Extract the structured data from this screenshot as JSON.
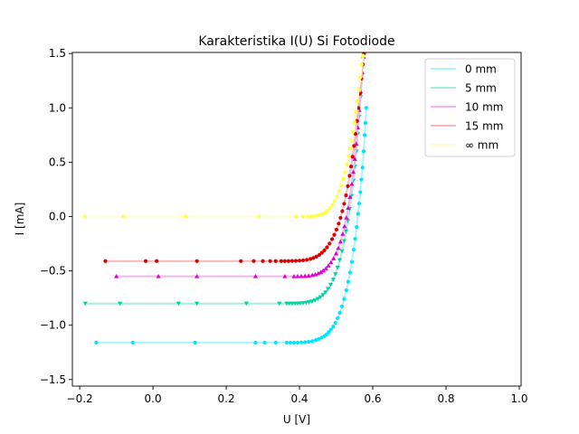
{
  "chart_data": {
    "type": "scatter",
    "title": "Karakteristika I(U) Si Fotodiode",
    "xlabel": "U [V]",
    "ylabel": "I [mA]",
    "xlim": [
      -0.22,
      1.005
    ],
    "ylim": [
      -1.56,
      1.51
    ],
    "xticks": [
      -0.2,
      0.0,
      0.2,
      0.4,
      0.6,
      0.8,
      1.0
    ],
    "yticks": [
      -1.5,
      -1.0,
      -0.5,
      0.0,
      0.5,
      1.0,
      1.5
    ],
    "xtick_labels": [
      "−0.2",
      "0.0",
      "0.2",
      "0.4",
      "0.6",
      "0.8",
      "1.0"
    ],
    "ytick_labels": [
      "−1.5",
      "−1.0",
      "−0.5",
      "0.0",
      "0.5",
      "1.0",
      "1.5"
    ],
    "grid": false,
    "legend_position": "top-right",
    "series": [
      {
        "name": "0 mm",
        "color": "#00e5ff",
        "line_color": "#a6f6ff",
        "marker": "circle",
        "points": [
          [
            -0.155,
            -1.16
          ],
          [
            -0.055,
            -1.16
          ],
          [
            0.115,
            -1.16
          ],
          [
            0.28,
            -1.16
          ],
          [
            0.305,
            -1.16
          ],
          [
            0.335,
            -1.16
          ],
          [
            0.365,
            -1.16
          ],
          [
            0.375,
            -1.16
          ],
          [
            0.385,
            -1.16
          ],
          [
            0.395,
            -1.16
          ],
          [
            0.405,
            -1.158
          ],
          [
            0.415,
            -1.156
          ],
          [
            0.425,
            -1.152
          ],
          [
            0.435,
            -1.146
          ],
          [
            0.445,
            -1.137
          ],
          [
            0.452,
            -1.128
          ],
          [
            0.46,
            -1.115
          ],
          [
            0.468,
            -1.1
          ],
          [
            0.474,
            -1.085
          ],
          [
            0.48,
            -1.063
          ],
          [
            0.486,
            -1.04
          ],
          [
            0.492,
            -1.012
          ],
          [
            0.498,
            -0.977
          ],
          [
            0.504,
            -0.935
          ],
          [
            0.51,
            -0.885
          ],
          [
            0.516,
            -0.827
          ],
          [
            0.522,
            -0.758
          ],
          [
            0.528,
            -0.678
          ],
          [
            0.533,
            -0.6
          ],
          [
            0.538,
            -0.515
          ],
          [
            0.543,
            -0.417
          ],
          [
            0.548,
            -0.305
          ],
          [
            0.552,
            -0.205
          ],
          [
            0.556,
            -0.097
          ],
          [
            0.56,
            0.025
          ],
          [
            0.563,
            0.12
          ],
          [
            0.566,
            0.224
          ],
          [
            0.569,
            0.34
          ],
          [
            0.572,
            0.45
          ],
          [
            0.575,
            0.6
          ],
          [
            0.578,
            0.75
          ],
          [
            0.58,
            0.86
          ],
          [
            0.582,
            1.0
          ]
        ]
      },
      {
        "name": "5 mm",
        "color": "#00d4a0",
        "line_color": "#a6f0d6",
        "marker": "triangle-down",
        "points": [
          [
            -0.185,
            -0.8
          ],
          [
            -0.09,
            -0.8
          ],
          [
            0.07,
            -0.8
          ],
          [
            0.12,
            -0.8
          ],
          [
            0.255,
            -0.8
          ],
          [
            0.345,
            -0.8
          ],
          [
            0.365,
            -0.8
          ],
          [
            0.372,
            -0.8
          ],
          [
            0.38,
            -0.8
          ],
          [
            0.388,
            -0.8
          ],
          [
            0.395,
            -0.799
          ],
          [
            0.402,
            -0.798
          ],
          [
            0.41,
            -0.796
          ],
          [
            0.418,
            -0.793
          ],
          [
            0.426,
            -0.788
          ],
          [
            0.434,
            -0.781
          ],
          [
            0.442,
            -0.771
          ],
          [
            0.45,
            -0.757
          ],
          [
            0.457,
            -0.742
          ],
          [
            0.464,
            -0.722
          ],
          [
            0.471,
            -0.697
          ],
          [
            0.478,
            -0.665
          ],
          [
            0.485,
            -0.627
          ],
          [
            0.492,
            -0.58
          ],
          [
            0.498,
            -0.53
          ],
          [
            0.504,
            -0.47
          ],
          [
            0.51,
            -0.4
          ],
          [
            0.516,
            -0.318
          ],
          [
            0.522,
            -0.225
          ],
          [
            0.527,
            -0.135
          ],
          [
            0.532,
            -0.04
          ],
          [
            0.537,
            0.07
          ],
          [
            0.542,
            0.19
          ],
          [
            0.547,
            0.33
          ],
          [
            0.551,
            0.46
          ],
          [
            0.555,
            0.6
          ],
          [
            0.559,
            0.76
          ],
          [
            0.563,
            0.92
          ],
          [
            0.567,
            1.1
          ],
          [
            0.571,
            1.3
          ],
          [
            0.574,
            1.45
          ]
        ]
      },
      {
        "name": "10 mm",
        "color": "#e000d0",
        "line_color": "#f4b5ee",
        "marker": "triangle-up",
        "points": [
          [
            -0.1,
            -0.55
          ],
          [
            0.015,
            -0.55
          ],
          [
            0.12,
            -0.55
          ],
          [
            0.28,
            -0.55
          ],
          [
            0.36,
            -0.55
          ],
          [
            0.385,
            -0.55
          ],
          [
            0.395,
            -0.55
          ],
          [
            0.405,
            -0.549
          ],
          [
            0.415,
            -0.547
          ],
          [
            0.425,
            -0.544
          ],
          [
            0.435,
            -0.539
          ],
          [
            0.443,
            -0.533
          ],
          [
            0.451,
            -0.524
          ],
          [
            0.458,
            -0.512
          ],
          [
            0.465,
            -0.497
          ],
          [
            0.472,
            -0.477
          ],
          [
            0.479,
            -0.452
          ],
          [
            0.486,
            -0.422
          ],
          [
            0.493,
            -0.385
          ],
          [
            0.5,
            -0.34
          ],
          [
            0.506,
            -0.29
          ],
          [
            0.512,
            -0.23
          ],
          [
            0.518,
            -0.16
          ],
          [
            0.523,
            -0.09
          ],
          [
            0.528,
            -0.01
          ],
          [
            0.533,
            0.08
          ],
          [
            0.538,
            0.18
          ],
          [
            0.543,
            0.3
          ],
          [
            0.547,
            0.41
          ],
          [
            0.551,
            0.53
          ],
          [
            0.555,
            0.67
          ],
          [
            0.559,
            0.82
          ],
          [
            0.563,
            0.98
          ],
          [
            0.567,
            1.15
          ],
          [
            0.571,
            1.33
          ],
          [
            0.575,
            1.47
          ]
        ]
      },
      {
        "name": "15 mm",
        "color": "#dd0000",
        "line_color": "#f7b8b8",
        "marker": "circle",
        "points": [
          [
            -0.13,
            -0.41
          ],
          [
            -0.02,
            -0.41
          ],
          [
            0.01,
            -0.41
          ],
          [
            0.12,
            -0.41
          ],
          [
            0.24,
            -0.41
          ],
          [
            0.275,
            -0.41
          ],
          [
            0.3,
            -0.41
          ],
          [
            0.32,
            -0.41
          ],
          [
            0.335,
            -0.41
          ],
          [
            0.35,
            -0.41
          ],
          [
            0.36,
            -0.41
          ],
          [
            0.37,
            -0.41
          ],
          [
            0.38,
            -0.409
          ],
          [
            0.39,
            -0.408
          ],
          [
            0.4,
            -0.406
          ],
          [
            0.41,
            -0.403
          ],
          [
            0.42,
            -0.398
          ],
          [
            0.43,
            -0.39
          ],
          [
            0.438,
            -0.381
          ],
          [
            0.446,
            -0.369
          ],
          [
            0.454,
            -0.353
          ],
          [
            0.461,
            -0.334
          ],
          [
            0.468,
            -0.311
          ],
          [
            0.475,
            -0.283
          ],
          [
            0.482,
            -0.249
          ],
          [
            0.489,
            -0.208
          ],
          [
            0.495,
            -0.168
          ],
          [
            0.501,
            -0.12
          ],
          [
            0.507,
            -0.065
          ],
          [
            0.512,
            -0.012
          ],
          [
            0.517,
            0.05
          ],
          [
            0.522,
            0.118
          ],
          [
            0.527,
            0.195
          ],
          [
            0.532,
            0.28
          ],
          [
            0.537,
            0.375
          ],
          [
            0.541,
            0.46
          ],
          [
            0.545,
            0.55
          ],
          [
            0.549,
            0.65
          ],
          [
            0.553,
            0.76
          ],
          [
            0.557,
            0.88
          ],
          [
            0.561,
            1.0
          ],
          [
            0.565,
            1.13
          ],
          [
            0.569,
            1.27
          ],
          [
            0.573,
            1.4
          ],
          [
            0.576,
            1.5
          ]
        ]
      },
      {
        "name": "∞ mm",
        "color": "#ffff44",
        "line_color": "#ffffcc",
        "marker": "circle",
        "points": [
          [
            -0.185,
            0.0
          ],
          [
            -0.08,
            0.0
          ],
          [
            0.09,
            0.0
          ],
          [
            0.29,
            0.0
          ],
          [
            0.39,
            0.0
          ],
          [
            0.41,
            0.0
          ],
          [
            0.425,
            0.001
          ],
          [
            0.435,
            0.003
          ],
          [
            0.445,
            0.007
          ],
          [
            0.453,
            0.013
          ],
          [
            0.461,
            0.022
          ],
          [
            0.469,
            0.035
          ],
          [
            0.476,
            0.053
          ],
          [
            0.483,
            0.077
          ],
          [
            0.49,
            0.107
          ],
          [
            0.496,
            0.142
          ],
          [
            0.502,
            0.183
          ],
          [
            0.508,
            0.232
          ],
          [
            0.514,
            0.289
          ],
          [
            0.519,
            0.345
          ],
          [
            0.524,
            0.407
          ],
          [
            0.529,
            0.478
          ],
          [
            0.534,
            0.556
          ],
          [
            0.538,
            0.626
          ],
          [
            0.542,
            0.7
          ],
          [
            0.546,
            0.78
          ],
          [
            0.55,
            0.87
          ],
          [
            0.554,
            0.96
          ],
          [
            0.558,
            1.06
          ],
          [
            0.562,
            1.17
          ],
          [
            0.566,
            1.28
          ],
          [
            0.57,
            1.4
          ],
          [
            0.573,
            1.48
          ]
        ]
      }
    ]
  }
}
